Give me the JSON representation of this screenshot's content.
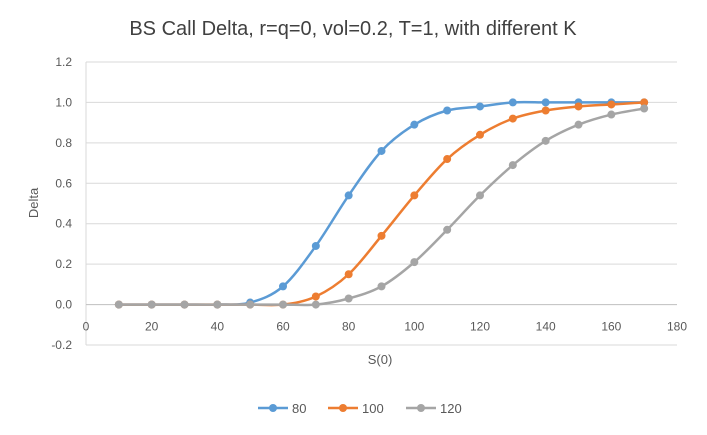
{
  "chart_data": {
    "type": "line",
    "title": "BS Call Delta, r=q=0, vol=0.2, T=1, with different K",
    "xlabel": "S(0)",
    "ylabel": "Delta",
    "xlim": [
      0,
      180
    ],
    "ylim": [
      -0.2,
      1.2
    ],
    "x_ticks": [
      0,
      20,
      40,
      60,
      80,
      100,
      120,
      140,
      160,
      180
    ],
    "y_ticks": [
      -0.2,
      0.0,
      0.2,
      0.4,
      0.6,
      0.8,
      1.0,
      1.2
    ],
    "x_tick_labels": [
      "0",
      "20",
      "40",
      "60",
      "80",
      "100",
      "120",
      "140",
      "160",
      "180"
    ],
    "y_tick_labels": [
      "-0.2",
      "0.0",
      "0.2",
      "0.4",
      "0.6",
      "0.8",
      "1.0",
      "1.2"
    ],
    "grid": "horizontal",
    "legend_position": "bottom",
    "x": [
      10,
      20,
      30,
      40,
      50,
      60,
      70,
      80,
      90,
      100,
      110,
      120,
      130,
      140,
      150,
      160,
      170
    ],
    "series": [
      {
        "name": "80",
        "color": "#5b9bd5",
        "values": [
          0.0,
          0.0,
          0.0,
          0.0,
          0.01,
          0.09,
          0.29,
          0.54,
          0.76,
          0.89,
          0.96,
          0.98,
          1.0,
          1.0,
          1.0,
          1.0,
          1.0
        ]
      },
      {
        "name": "100",
        "color": "#ed7d31",
        "values": [
          0.0,
          0.0,
          0.0,
          0.0,
          0.0,
          0.0,
          0.04,
          0.15,
          0.34,
          0.54,
          0.72,
          0.84,
          0.92,
          0.96,
          0.98,
          0.99,
          1.0
        ]
      },
      {
        "name": "120",
        "color": "#a5a5a5",
        "values": [
          0.0,
          0.0,
          0.0,
          0.0,
          0.0,
          0.0,
          0.0,
          0.03,
          0.09,
          0.21,
          0.37,
          0.54,
          0.69,
          0.81,
          0.89,
          0.94,
          0.97
        ]
      }
    ]
  }
}
